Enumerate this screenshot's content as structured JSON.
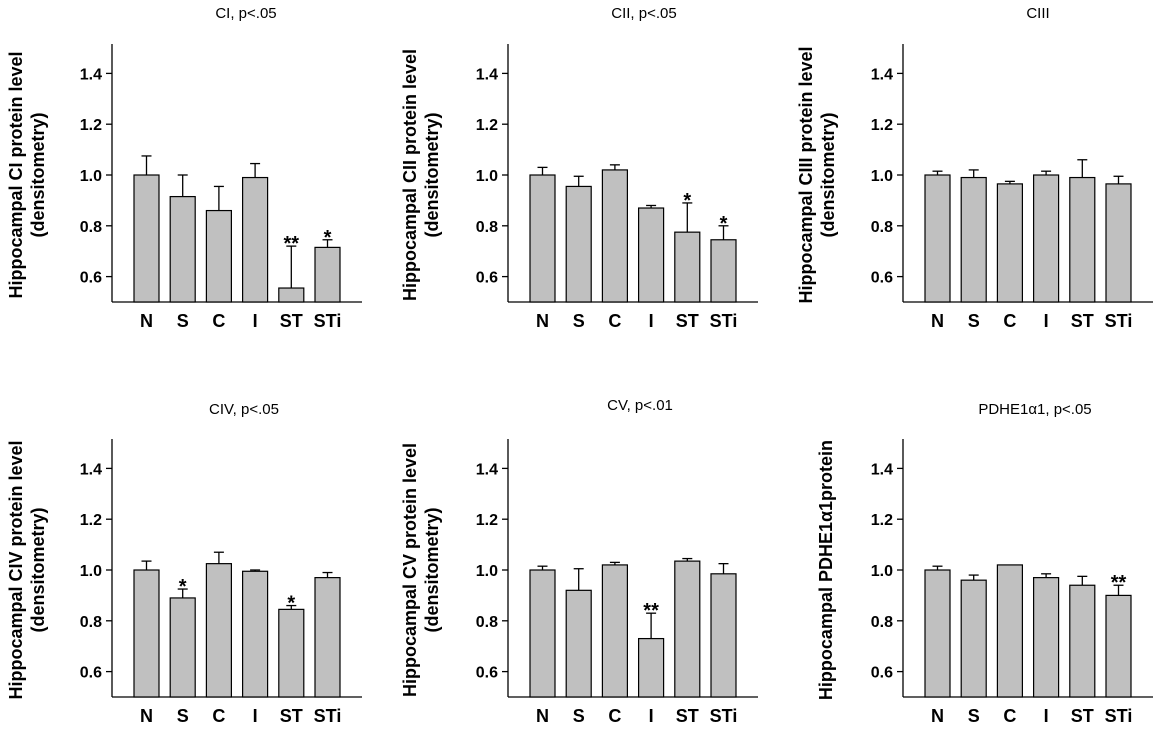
{
  "chart_data": [
    {
      "type": "bar",
      "title": "CI, p<.05",
      "ylabel_lines": [
        "Hippocampal CI protein level",
        "(densitometry)"
      ],
      "categories": [
        "N",
        "S",
        "C",
        "I",
        "ST",
        "STi"
      ],
      "values": [
        1.0,
        0.915,
        0.86,
        0.99,
        0.555,
        0.715
      ],
      "errors": [
        0.075,
        0.085,
        0.095,
        0.055,
        0.165,
        0.03
      ],
      "annotations": [
        "",
        "",
        "",
        "",
        "**",
        "*"
      ],
      "yticks": [
        "0.6",
        "0.8",
        "1.0",
        "1.2",
        "1.4"
      ],
      "ylim": [
        0.5,
        1.5
      ],
      "color": "#c0c0c0"
    },
    {
      "type": "bar",
      "title": "CII, p<.05",
      "ylabel_lines": [
        "Hippocampal CII protein level",
        "(densitometry)"
      ],
      "categories": [
        "N",
        "S",
        "C",
        "I",
        "ST",
        "STi"
      ],
      "values": [
        1.0,
        0.955,
        1.02,
        0.87,
        0.775,
        0.745
      ],
      "errors": [
        0.03,
        0.04,
        0.02,
        0.01,
        0.115,
        0.055
      ],
      "annotations": [
        "",
        "",
        "",
        "",
        "*",
        "*"
      ],
      "yticks": [
        "0.6",
        "0.8",
        "1.0",
        "1.2",
        "1.4"
      ],
      "ylim": [
        0.5,
        1.5
      ],
      "color": "#c0c0c0"
    },
    {
      "type": "bar",
      "title": "CIII",
      "ylabel_lines": [
        "Hippocampal CIII protein level",
        "(densitometry)"
      ],
      "categories": [
        "N",
        "S",
        "C",
        "I",
        "ST",
        "STi"
      ],
      "values": [
        1.0,
        0.99,
        0.965,
        1.0,
        0.99,
        0.965
      ],
      "errors": [
        0.015,
        0.03,
        0.01,
        0.015,
        0.07,
        0.03
      ],
      "annotations": [
        "",
        "",
        "",
        "",
        "",
        ""
      ],
      "yticks": [
        "0.6",
        "0.8",
        "1.0",
        "1.2",
        "1.4"
      ],
      "ylim": [
        0.5,
        1.5
      ],
      "color": "#c0c0c0"
    },
    {
      "type": "bar",
      "title": "CIV, p<.05",
      "ylabel_lines": [
        "Hippocampal CIV protein level",
        "(densitometry)"
      ],
      "categories": [
        "N",
        "S",
        "C",
        "I",
        "ST",
        "STi"
      ],
      "values": [
        1.0,
        0.89,
        1.025,
        0.995,
        0.845,
        0.97
      ],
      "errors": [
        0.035,
        0.035,
        0.045,
        0.005,
        0.015,
        0.02
      ],
      "annotations": [
        "",
        "*",
        "",
        "",
        "*",
        ""
      ],
      "yticks": [
        "0.6",
        "0.8",
        "1.0",
        "1.2",
        "1.4"
      ],
      "ylim": [
        0.5,
        1.5
      ],
      "color": "#c0c0c0"
    },
    {
      "type": "bar",
      "title": "CV, p<.01",
      "ylabel_lines": [
        "Hippocampal CV protein level",
        "(densitometry)"
      ],
      "categories": [
        "N",
        "S",
        "C",
        "I",
        "ST",
        "STi"
      ],
      "values": [
        1.0,
        0.92,
        1.02,
        0.73,
        1.035,
        0.985
      ],
      "errors": [
        0.015,
        0.085,
        0.01,
        0.1,
        0.01,
        0.04
      ],
      "annotations": [
        "",
        "",
        "",
        "**",
        "",
        ""
      ],
      "yticks": [
        "0.6",
        "0.8",
        "1.0",
        "1.2",
        "1.4"
      ],
      "ylim": [
        0.5,
        1.5
      ],
      "color": "#c0c0c0"
    },
    {
      "type": "bar",
      "title": "PDHE1α1, p<.05",
      "ylabel_lines": [
        "Hippocampal PDHE1α1protein"
      ],
      "categories": [
        "N",
        "S",
        "C",
        "I",
        "ST",
        "STi"
      ],
      "values": [
        1.0,
        0.96,
        1.02,
        0.97,
        0.94,
        0.9
      ],
      "errors": [
        0.015,
        0.02,
        0.0,
        0.015,
        0.035,
        0.04
      ],
      "annotations": [
        "",
        "",
        "",
        "",
        "",
        "**"
      ],
      "yticks": [
        "0.6",
        "0.8",
        "1.0",
        "1.2",
        "1.4"
      ],
      "ylim": [
        0.5,
        1.5
      ],
      "color": "#c0c0c0"
    }
  ]
}
